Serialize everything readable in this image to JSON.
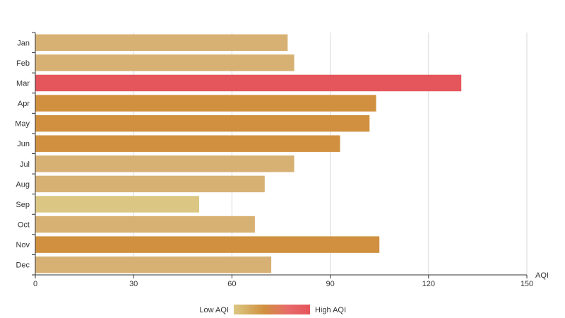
{
  "chart_data": {
    "type": "bar",
    "orientation": "horizontal",
    "categories": [
      "Jan",
      "Feb",
      "Mar",
      "Apr",
      "May",
      "Jun",
      "Jul",
      "Aug",
      "Sep",
      "Oct",
      "Nov",
      "Dec"
    ],
    "values": [
      77,
      79,
      130,
      104,
      102,
      93,
      79,
      70,
      50,
      67,
      105,
      72
    ],
    "xlabel": "AQI",
    "xlim": [
      0,
      150
    ],
    "xticks": [
      0,
      30,
      60,
      90,
      120,
      150
    ],
    "grid": true,
    "visual_map": {
      "low_label": "Low AQI",
      "high_label": "High AQI",
      "colors": [
        "#dbc783",
        "#d0903f",
        "#e86a6a",
        "#e4545a"
      ],
      "placement": "bottom-center"
    },
    "bar_colors": [
      "#d7b073",
      "#d7b073",
      "#e4565c",
      "#d0903f",
      "#d0903f",
      "#d0903f",
      "#d7b073",
      "#d7b073",
      "#dbc783",
      "#d7b073",
      "#d0903f",
      "#d7b073"
    ]
  }
}
